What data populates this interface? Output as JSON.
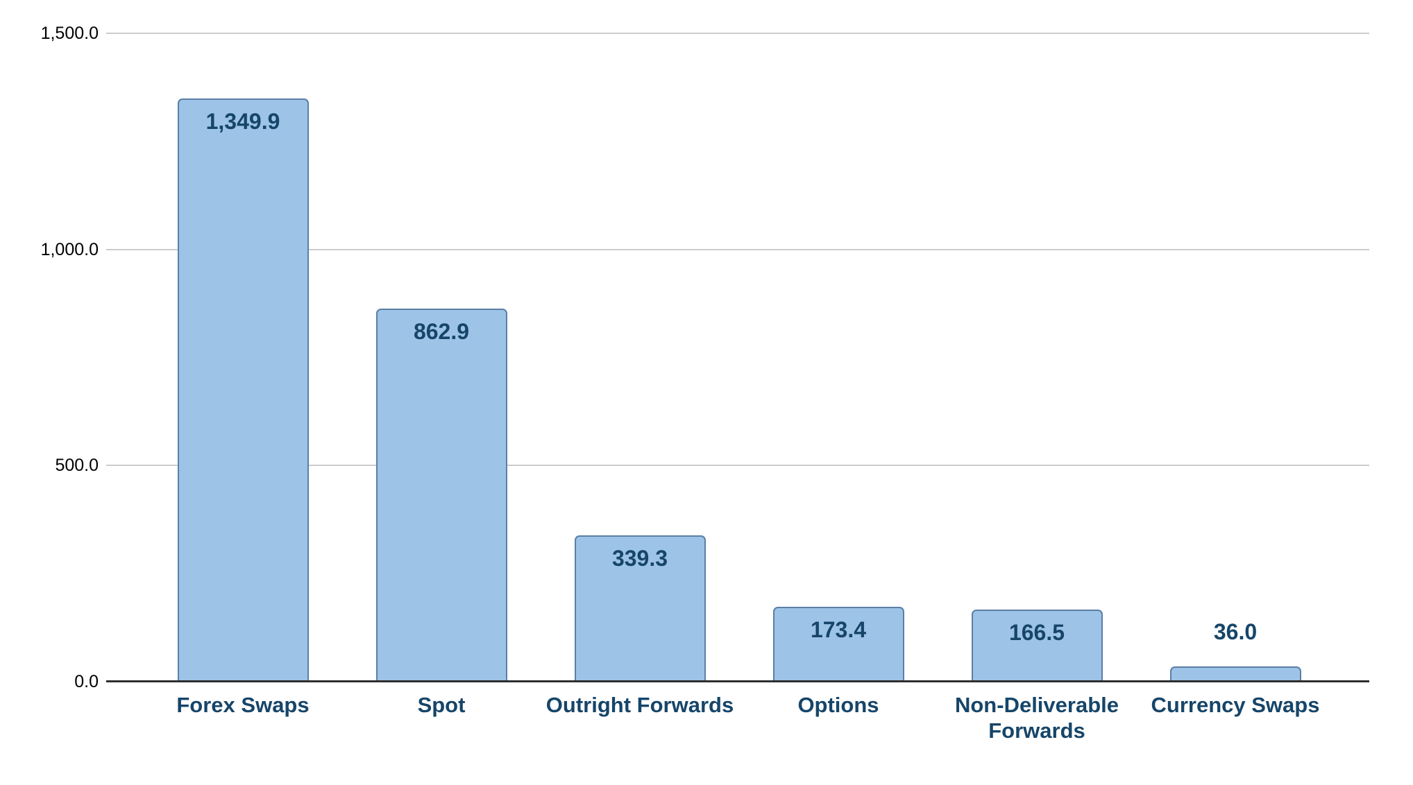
{
  "chart_data": {
    "type": "bar",
    "title": "",
    "xlabel": "",
    "ylabel": "",
    "categories": [
      "Forex Swaps",
      "Spot",
      "Outright Forwards",
      "Options",
      "Non-Deliverable Forwards",
      "Currency Swaps"
    ],
    "values": [
      1349.9,
      862.9,
      339.3,
      173.4,
      166.5,
      36.0
    ],
    "value_labels": [
      "1,349.9",
      "862.9",
      "339.3",
      "173.4",
      "166.5",
      "36.0"
    ],
    "value_label_placement": [
      "inside",
      "inside",
      "inside",
      "inside",
      "inside",
      "outside"
    ],
    "y_ticks": [
      {
        "value": 0,
        "label": "0.0"
      },
      {
        "value": 500,
        "label": "500.0"
      },
      {
        "value": 1000,
        "label": "1,000.0"
      },
      {
        "value": 1500,
        "label": "1,500.0"
      }
    ],
    "ylim": [
      0,
      1500
    ],
    "grid": "horizontal",
    "legend_position": "none",
    "colors": {
      "bar_fill": "#9dc3e6",
      "bar_border": "#5b7fa6",
      "label_text": "#164569",
      "tick_text": "#000000",
      "gridline": "#cccccc",
      "axis_line": "#2e2e2e",
      "background": "#ffffff"
    }
  }
}
